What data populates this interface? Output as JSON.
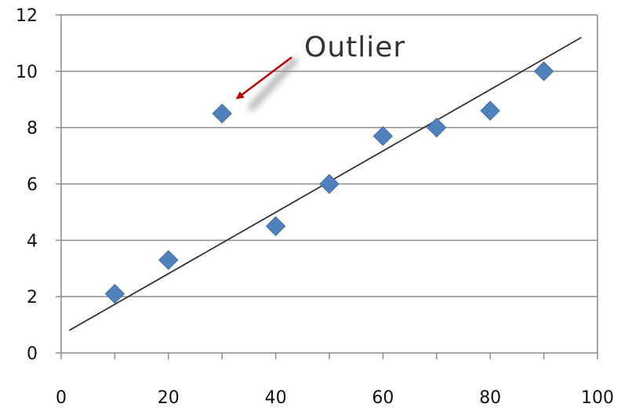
{
  "chart_data": {
    "type": "scatter",
    "title": "",
    "xlabel": "",
    "ylabel": "",
    "xlim": [
      0,
      100
    ],
    "ylim": [
      0,
      12
    ],
    "x_ticks": [
      0,
      20,
      40,
      60,
      80,
      100
    ],
    "y_ticks": [
      0,
      2,
      4,
      6,
      8,
      10,
      12
    ],
    "grid": "horizontal",
    "legend": "none",
    "series": [
      {
        "marker": "diamond",
        "color": "#4f81bd",
        "points": [
          {
            "x": 10,
            "y": 2.1
          },
          {
            "x": 20,
            "y": 3.3
          },
          {
            "x": 30,
            "y": 8.5
          },
          {
            "x": 40,
            "y": 4.5
          },
          {
            "x": 50,
            "y": 6.0
          },
          {
            "x": 60,
            "y": 7.7
          },
          {
            "x": 70,
            "y": 8.0
          },
          {
            "x": 80,
            "y": 8.6
          },
          {
            "x": 90,
            "y": 10.0
          }
        ]
      }
    ],
    "trendline": {
      "type": "linear",
      "color": "#333333",
      "from": {
        "x": 1.5,
        "y": 0.8
      },
      "to": {
        "x": 97,
        "y": 11.2
      }
    },
    "annotations": [
      {
        "text": "Outlier",
        "color": "#333333",
        "arrow_color": "#c00000",
        "points_to": {
          "x": 30,
          "y": 8.5
        }
      }
    ]
  }
}
